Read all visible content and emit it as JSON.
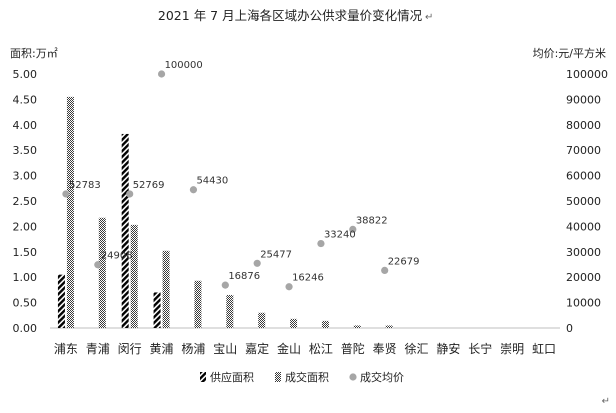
{
  "chart_data": {
    "type": "bar",
    "title": "2021 年 7 月上海各区域办公供求量价变化情况",
    "title_mark": "↵",
    "ylabel_left": "面积:万㎡",
    "ylabel_right": "均价:元/平方米",
    "ylim_left": [
      0,
      5
    ],
    "ylim_right": [
      0,
      100000
    ],
    "yticks_left": [
      "0.00",
      "0.50",
      "1.00",
      "1.50",
      "2.00",
      "2.50",
      "3.00",
      "3.50",
      "4.00",
      "4.50",
      "5.00"
    ],
    "yticks_right": [
      "0",
      "10000",
      "20000",
      "30000",
      "40000",
      "50000",
      "60000",
      "70000",
      "80000",
      "90000",
      "100000"
    ],
    "categories": [
      "浦东",
      "青浦",
      "闵行",
      "黄浦",
      "杨浦",
      "宝山",
      "嘉定",
      "金山",
      "松江",
      "普陀",
      "奉贤",
      "徐汇",
      "静安",
      "长宁",
      "崇明",
      "虹口"
    ],
    "series": [
      {
        "name": "供应面积",
        "kind": "bar",
        "axis": "left",
        "color": "#000000",
        "values": [
          1.05,
          0,
          3.82,
          0.7,
          0,
          0,
          0,
          0,
          0,
          0,
          0,
          0,
          0,
          0,
          0,
          0
        ]
      },
      {
        "name": "成交面积",
        "kind": "bar",
        "axis": "left",
        "color": "#555555",
        "values": [
          4.55,
          2.17,
          2.03,
          1.52,
          0.93,
          0.65,
          0.3,
          0.18,
          0.14,
          0.05,
          0.05,
          0,
          0,
          0,
          0,
          0
        ]
      },
      {
        "name": "成交均价",
        "kind": "scatter",
        "axis": "right",
        "color": "#a6a6a6",
        "values": [
          52783,
          24908,
          52769,
          100000,
          54430,
          16876,
          25477,
          16246,
          33240,
          38822,
          22679,
          null,
          null,
          null,
          null,
          null
        ],
        "labels": [
          "52783",
          "24908",
          "52769",
          "100000",
          "54430",
          "16876",
          "25477",
          "16246",
          "33240",
          "38822",
          "22679",
          "",
          "",
          "",
          "",
          ""
        ]
      }
    ],
    "grid": false,
    "legend_position": "bottom"
  },
  "corner_mark": "↵"
}
